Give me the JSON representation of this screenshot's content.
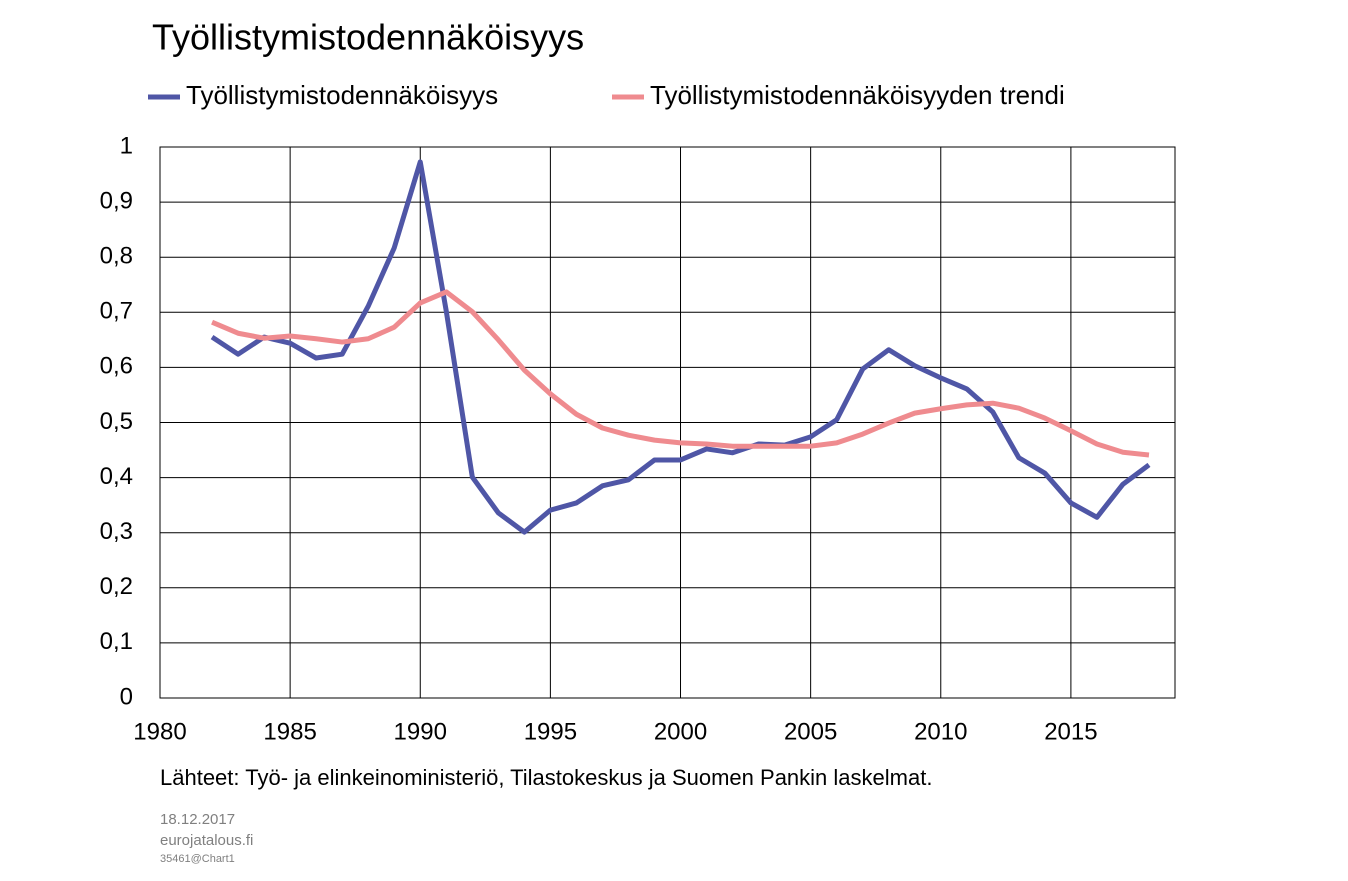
{
  "chart_data": {
    "type": "line",
    "title": "Työllistymistodennäköisyys",
    "x": [
      1982,
      1983,
      1984,
      1985,
      1986,
      1987,
      1988,
      1989,
      1990,
      1991,
      1992,
      1993,
      1994,
      1995,
      1996,
      1997,
      1998,
      1999,
      2000,
      2001,
      2002,
      2003,
      2004,
      2005,
      2006,
      2007,
      2008,
      2009,
      2010,
      2011,
      2012,
      2013,
      2014,
      2015,
      2016,
      2017,
      2018
    ],
    "series": [
      {
        "name": "Työllistymistodennäköisyys",
        "color": "#4f56a6",
        "values": [
          0.655,
          0.624,
          0.655,
          0.644,
          0.617,
          0.624,
          0.711,
          0.817,
          0.973,
          0.702,
          0.401,
          0.336,
          0.301,
          0.341,
          0.354,
          0.385,
          0.396,
          0.432,
          0.432,
          0.452,
          0.445,
          0.461,
          0.459,
          0.474,
          0.505,
          0.597,
          0.632,
          0.603,
          0.581,
          0.561,
          0.519,
          0.436,
          0.408,
          0.354,
          0.328,
          0.388,
          0.423
        ]
      },
      {
        "name": "Työllistymistodennäköisyyden trendi",
        "color": "#ef8b8f",
        "values": [
          0.682,
          0.662,
          0.653,
          0.657,
          0.652,
          0.646,
          0.652,
          0.673,
          0.717,
          0.737,
          0.701,
          0.65,
          0.595,
          0.552,
          0.515,
          0.49,
          0.477,
          0.468,
          0.463,
          0.461,
          0.457,
          0.457,
          0.457,
          0.457,
          0.463,
          0.479,
          0.499,
          0.517,
          0.525,
          0.532,
          0.535,
          0.526,
          0.508,
          0.485,
          0.461,
          0.446,
          0.441
        ]
      }
    ],
    "xlim": [
      1980,
      2019
    ],
    "xticks": [
      1980,
      1985,
      1990,
      1995,
      2000,
      2005,
      2010,
      2015
    ],
    "ylim": [
      0,
      1
    ],
    "yticks": [
      0,
      {
        "value": 0.1,
        "label": "0,1"
      },
      {
        "value": 0.2,
        "label": "0,2"
      },
      {
        "value": 0.3,
        "label": "0,3"
      },
      {
        "value": 0.4,
        "label": "0,4"
      },
      {
        "value": 0.5,
        "label": "0,5"
      },
      {
        "value": 0.6,
        "label": "0,6"
      },
      {
        "value": 0.7,
        "label": "0,7"
      },
      {
        "value": 0.8,
        "label": "0,8"
      },
      {
        "value": 0.9,
        "label": "0,9"
      },
      1
    ],
    "grid": true,
    "legend": "top",
    "source": "Lähteet: Työ- ja elinkeinoministeriö, Tilastokeskus ja Suomen Pankin laskelmat.",
    "date": "18.12.2017",
    "site": "eurojatalous.fi",
    "code": "35461@Chart1"
  }
}
